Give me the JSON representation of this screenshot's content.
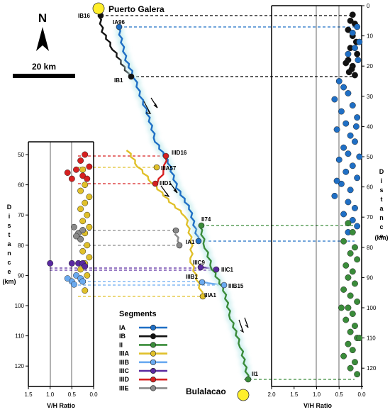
{
  "colors": {
    "IA": "#1f6fc5",
    "IB": "#111111",
    "II": "#3a8c3a",
    "IIIA": "#e0c02a",
    "IIIB": "#6aaaf0",
    "IIIC": "#5a2aa0",
    "IIID": "#d62020",
    "IIIE": "#8a8a8a",
    "town": "#ffef2a",
    "glow": "#cfeff0"
  },
  "north": {
    "label": "N"
  },
  "scalebar": {
    "label": "20 km"
  },
  "towns": {
    "north": "Puerto Galera",
    "south": "Bulalacao"
  },
  "points": {
    "IB16": "IB16",
    "IA96": "IA96",
    "IB1": "IB1",
    "IIID16": "IIID16",
    "IIIA57": "IIIA57",
    "IIID1": "IIID1",
    "II74": "II74",
    "IA1": "IA1",
    "IIIC9": "IIIC9",
    "IIIC1": "IIIC1",
    "IIIB1": "IIIB1",
    "IIIB15": "IIIB15",
    "IIIA1": "IIIA1",
    "II1": "II1"
  },
  "legend": {
    "title": "Segments",
    "items": [
      {
        "id": "IA",
        "label": "IA"
      },
      {
        "id": "IB",
        "label": "IB"
      },
      {
        "id": "II",
        "label": "II"
      },
      {
        "id": "IIIA",
        "label": "IIIA"
      },
      {
        "id": "IIIB",
        "label": "IIIB"
      },
      {
        "id": "IIIC",
        "label": "IIIC"
      },
      {
        "id": "IIID",
        "label": "IIID"
      },
      {
        "id": "IIIE",
        "label": "IIIE"
      }
    ]
  },
  "left_panel": {
    "xlabel": "V/H Ratio",
    "ylabel": "Distance",
    "yunit": "(km)",
    "xticks": [
      "1.5",
      "1.0",
      "0.5",
      "0.0"
    ],
    "yticks": [
      "50",
      "60",
      "70",
      "80",
      "90",
      "100",
      "110",
      "120"
    ]
  },
  "right_panel": {
    "xlabel": "V/H Ratio",
    "ylabel": "Distance",
    "yunit": "(km)",
    "xticks": [
      "2.0",
      "1.5",
      "1.0",
      "0.5",
      "0.0"
    ],
    "yticks": [
      "0",
      "10",
      "20",
      "30",
      "40",
      "50",
      "60",
      "70",
      "80",
      "90",
      "100",
      "110",
      "120"
    ]
  },
  "chart_data": [
    {
      "type": "scatter",
      "xlabel": "V/H Ratio",
      "ylabel": "Distance (km)",
      "xlim": [
        2.0,
        0.0
      ],
      "ylim": [
        0,
        125
      ],
      "series": [
        {
          "name": "IB",
          "points": [
            [
              0.2,
              3
            ],
            [
              0.25,
              5
            ],
            [
              0.15,
              6
            ],
            [
              0.3,
              8
            ],
            [
              0.2,
              10
            ],
            [
              0.12,
              12
            ],
            [
              0.25,
              14
            ],
            [
              0.1,
              16
            ],
            [
              0.3,
              18
            ],
            [
              0.2,
              20
            ],
            [
              0.28,
              22
            ],
            [
              0.15,
              23
            ],
            [
              0.22,
              21
            ],
            [
              0.35,
              19
            ]
          ]
        },
        {
          "name": "IA",
          "points": [
            [
              0.1,
              7
            ],
            [
              0.2,
              9
            ],
            [
              0.05,
              12
            ],
            [
              0.15,
              14
            ],
            [
              0.3,
              16
            ],
            [
              0.08,
              18
            ],
            [
              0.5,
              25
            ],
            [
              0.4,
              27
            ],
            [
              0.3,
              29
            ],
            [
              0.6,
              31
            ],
            [
              0.2,
              33
            ],
            [
              0.45,
              35
            ],
            [
              0.1,
              37
            ],
            [
              0.35,
              39
            ],
            [
              0.55,
              41
            ],
            [
              0.25,
              43
            ],
            [
              0.15,
              45
            ],
            [
              0.4,
              47
            ],
            [
              0.3,
              49
            ],
            [
              0.5,
              51
            ],
            [
              0.2,
              53
            ],
            [
              0.35,
              55
            ],
            [
              0.1,
              57
            ],
            [
              0.45,
              59
            ],
            [
              0.25,
              61
            ],
            [
              0.6,
              63
            ],
            [
              0.3,
              65
            ],
            [
              0.15,
              67
            ],
            [
              0.4,
              69
            ],
            [
              0.2,
              71
            ],
            [
              0.1,
              73
            ],
            [
              0.3,
              75
            ],
            [
              0.55,
              58
            ],
            [
              0.05,
              50
            ],
            [
              0.12,
              40
            ]
          ]
        },
        {
          "name": "II",
          "points": [
            [
              0.3,
              72
            ],
            [
              0.2,
              75
            ],
            [
              0.4,
              78
            ],
            [
              0.15,
              80
            ],
            [
              0.25,
              82
            ],
            [
              0.1,
              84
            ],
            [
              0.35,
              86
            ],
            [
              0.2,
              88
            ],
            [
              0.3,
              90
            ],
            [
              0.15,
              92
            ],
            [
              0.4,
              94
            ],
            [
              0.25,
              96
            ],
            [
              0.1,
              98
            ],
            [
              0.3,
              100
            ],
            [
              0.2,
              102
            ],
            [
              0.35,
              104
            ],
            [
              0.15,
              106
            ],
            [
              0.25,
              108
            ],
            [
              0.1,
              110
            ],
            [
              0.3,
              112
            ],
            [
              0.2,
              114
            ],
            [
              0.4,
              116
            ],
            [
              0.15,
              118
            ],
            [
              0.25,
              120
            ],
            [
              0.1,
              122
            ],
            [
              0.05,
              110
            ],
            [
              0.45,
              100
            ]
          ]
        },
        {
          "name": "IIID",
          "points": [
            [
              0.2,
              50
            ],
            [
              0.3,
              52
            ],
            [
              0.1,
              54
            ],
            [
              0.4,
              55
            ],
            [
              0.25,
              57
            ],
            [
              0.15,
              58
            ],
            [
              0.6,
              56
            ],
            [
              0.5,
              58
            ]
          ]
        },
        {
          "name": "IIIA",
          "points": [
            [
              0.25,
              55
            ],
            [
              0.2,
              60
            ],
            [
              0.3,
              62
            ],
            [
              0.1,
              64
            ],
            [
              0.2,
              66
            ],
            [
              0.3,
              68
            ],
            [
              0.15,
              70
            ],
            [
              0.25,
              72
            ],
            [
              0.1,
              74
            ],
            [
              0.2,
              76
            ],
            [
              0.3,
              78
            ],
            [
              0.15,
              80
            ],
            [
              0.25,
              82
            ],
            [
              0.1,
              84
            ],
            [
              0.2,
              86
            ],
            [
              0.3,
              88
            ],
            [
              0.15,
              90
            ],
            [
              0.25,
              92
            ],
            [
              0.2,
              95
            ]
          ]
        },
        {
          "name": "IIIE",
          "points": [
            [
              0.45,
              74
            ],
            [
              0.35,
              76
            ],
            [
              0.3,
              78
            ],
            [
              0.25,
              75
            ],
            [
              0.4,
              77
            ]
          ]
        },
        {
          "name": "IIIC",
          "points": [
            [
              1.0,
              86
            ],
            [
              0.5,
              86
            ],
            [
              0.35,
              86
            ],
            [
              0.25,
              86
            ],
            [
              0.2,
              87
            ]
          ]
        },
        {
          "name": "IIIB",
          "points": [
            [
              0.6,
              91
            ],
            [
              0.5,
              92
            ],
            [
              0.4,
              90
            ],
            [
              0.3,
              91
            ],
            [
              0.25,
              92
            ],
            [
              0.45,
              93
            ]
          ]
        }
      ]
    }
  ]
}
